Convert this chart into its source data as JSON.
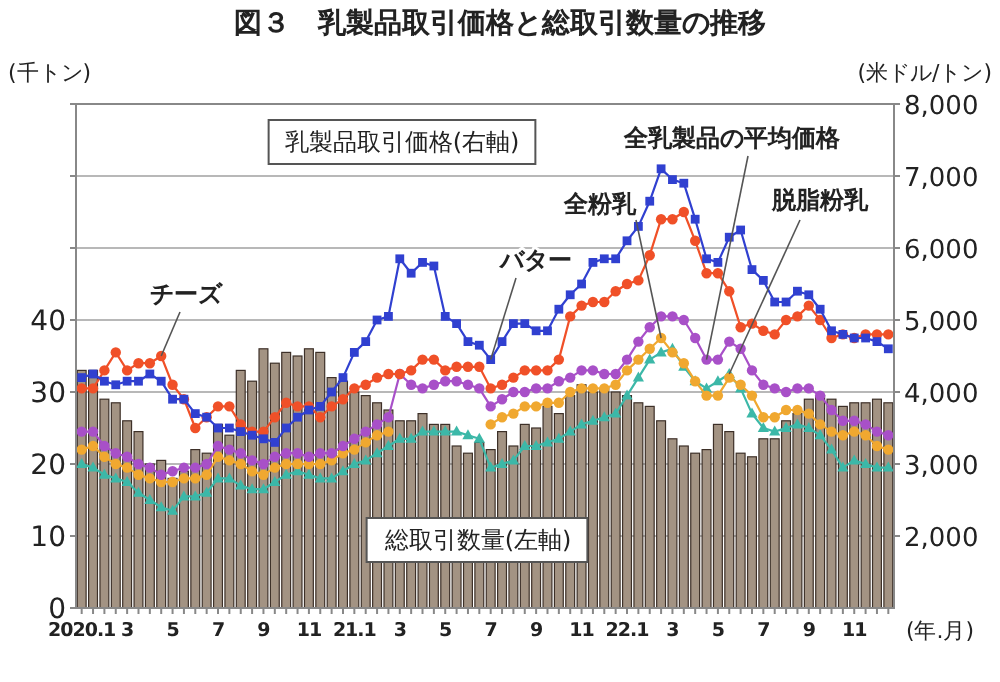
{
  "chart_data": {
    "type": "bar",
    "title": "図３　乳製品取引価格と総取引数量の推移",
    "xlabel": "(年.月)",
    "ylabel": "(千トン)",
    "y2label": "(米ドル/トン)",
    "annotations": [
      "乳製品取引価格(右軸)",
      "総取引数量(左軸)"
    ],
    "categories": [
      "2020.1",
      null,
      null,
      null,
      "3",
      null,
      null,
      null,
      "5",
      null,
      null,
      null,
      "7",
      null,
      null,
      null,
      "9",
      null,
      null,
      null,
      "11",
      null,
      null,
      null,
      "21.1",
      null,
      null,
      null,
      "3",
      null,
      null,
      null,
      "5",
      null,
      null,
      null,
      "7",
      null,
      null,
      null,
      "9",
      null,
      null,
      null,
      "11",
      null,
      null,
      null,
      "22.1",
      null,
      null,
      null,
      "3",
      null,
      null,
      null,
      "5",
      null,
      null,
      null,
      "7",
      null,
      null,
      null,
      "9",
      null,
      null,
      null,
      "11",
      null,
      null,
      null
    ],
    "ylim": [
      0,
      70
    ],
    "yticks": [
      0,
      10,
      20,
      30,
      40,
      {
        "value": 50,
        "label": null
      },
      {
        "value": 60,
        "label": null
      },
      {
        "value": 70,
        "label": null
      }
    ],
    "y2lim": [
      1000,
      8000
    ],
    "y2ticks": [
      {
        "value": 2000,
        "label": "2,000"
      },
      {
        "value": 3000,
        "label": "3,000"
      },
      {
        "value": 4000,
        "label": "4,000"
      },
      {
        "value": 5000,
        "label": "5,000"
      },
      {
        "value": 6000,
        "label": "6,000"
      },
      {
        "value": 7000,
        "label": "7,000"
      },
      {
        "value": 8000,
        "label": "8,000"
      }
    ],
    "grid": "y",
    "series": [
      {
        "color": "#a39383",
        "values": [
          33,
          33,
          29,
          28.5,
          26,
          24.5,
          20,
          20.5,
          18,
          19,
          22,
          21.5,
          25.5,
          24,
          33,
          31.5,
          36,
          34,
          35.5,
          35,
          36,
          35.5,
          32,
          31.5,
          30,
          29.5,
          28.5,
          27.5,
          26,
          26,
          27,
          25.5,
          25.5,
          22.5,
          21.5,
          23,
          22,
          24.5,
          22.5,
          25.5,
          25,
          28,
          27,
          29.5,
          31,
          30,
          30.5,
          30,
          29.5,
          28.5,
          28,
          26,
          23.5,
          22.5,
          21.5,
          22,
          25.5,
          24.5,
          21.5,
          21,
          23.5,
          23.5,
          26,
          27,
          29,
          29.5,
          29,
          28,
          28.5,
          28.5,
          29,
          28.5
        ]
      },
      {
        "type": "line",
        "axis": "y2",
        "name": "脱脂粉乳",
        "color": "#3cb8a8",
        "marker": "triangle",
        "values": [
          3000,
          2950,
          2850,
          2800,
          2750,
          2600,
          2500,
          2400,
          2350,
          2550,
          2550,
          2600,
          2800,
          2800,
          2700,
          2650,
          2650,
          2750,
          2850,
          2900,
          2850,
          2800,
          2800,
          2900,
          3000,
          3050,
          3150,
          3250,
          3350,
          3350,
          3450,
          3450,
          3450,
          3450,
          3400,
          3350,
          2950,
          3000,
          3050,
          3250,
          3250,
          3300,
          3350,
          3450,
          3550,
          3600,
          3650,
          3700,
          3950,
          4200,
          4450,
          4550,
          4600,
          4350,
          4150,
          4050,
          4150,
          4250,
          4050,
          3700,
          3500,
          3450,
          3500,
          3550,
          3500,
          3400,
          3200,
          2950,
          3050,
          3000,
          2950,
          2950
        ]
      },
      {
        "type": "line",
        "axis": "y2",
        "name": "全粉乳",
        "color": "#f0a830",
        "marker": "circle",
        "values": [
          3200,
          3250,
          3100,
          3000,
          2950,
          2850,
          2800,
          2750,
          2750,
          2800,
          2800,
          2850,
          3100,
          3050,
          3000,
          2900,
          2850,
          2950,
          3000,
          3000,
          3000,
          3000,
          3050,
          3150,
          3200,
          3300,
          3400,
          3450,
          null,
          null,
          null,
          null,
          null,
          null,
          null,
          null,
          3550,
          3650,
          3700,
          3800,
          3800,
          3850,
          3850,
          4000,
          4050,
          4050,
          4050,
          4100,
          4300,
          4450,
          4600,
          4750,
          4550,
          4400,
          4150,
          3950,
          3950,
          4200,
          4100,
          3950,
          3650,
          3650,
          3750,
          3750,
          3700,
          3550,
          3450,
          3400,
          3450,
          3400,
          3250,
          3200
        ]
      },
      {
        "type": "line",
        "axis": "y2",
        "name": "全乳製品の平均価格",
        "color": "#a850c8",
        "marker": "circle",
        "values": [
          3450,
          3450,
          3250,
          3150,
          3100,
          3000,
          2950,
          2850,
          2900,
          2950,
          2950,
          3000,
          3250,
          3200,
          3150,
          3050,
          3000,
          3100,
          3150,
          3150,
          3100,
          3150,
          3150,
          3250,
          3350,
          3450,
          3550,
          3650,
          4250,
          4100,
          4050,
          4100,
          4150,
          4150,
          4100,
          4050,
          3800,
          3900,
          4000,
          4000,
          4050,
          4050,
          4150,
          4200,
          4300,
          4300,
          4250,
          4250,
          4450,
          4700,
          4900,
          5050,
          5050,
          5000,
          4750,
          4450,
          4450,
          4700,
          4600,
          4300,
          4100,
          4050,
          4000,
          4050,
          4050,
          3950,
          3750,
          3600,
          3600,
          3550,
          3450,
          3400
        ]
      },
      {
        "type": "line",
        "axis": "y2",
        "name": "チーズ",
        "color": "#f05028",
        "marker": "circle",
        "values": [
          4050,
          4050,
          4300,
          4550,
          4300,
          4400,
          4400,
          4500,
          4100,
          3900,
          3500,
          3650,
          3800,
          3800,
          3550,
          3450,
          3450,
          3650,
          3850,
          3800,
          3800,
          3650,
          3800,
          3900,
          4050,
          4100,
          4200,
          4250,
          4250,
          4300,
          4450,
          4450,
          4300,
          4350,
          4350,
          4350,
          4050,
          4100,
          4200,
          4300,
          4300,
          4300,
          4450,
          5050,
          5200,
          5250,
          5250,
          5400,
          5500,
          5550,
          5900,
          6400,
          6400,
          6500,
          6100,
          5650,
          5650,
          5400,
          4900,
          4950,
          4850,
          4800,
          5000,
          5050,
          5200,
          5000,
          4750,
          4800,
          4750,
          4800,
          4800,
          4800
        ]
      },
      {
        "type": "line",
        "axis": "y2",
        "name": "バター",
        "color": "#3040d0",
        "marker": "square",
        "values": [
          4200,
          4250,
          4150,
          4100,
          4150,
          4150,
          4250,
          4150,
          3900,
          3900,
          3700,
          3650,
          3500,
          3500,
          3450,
          3400,
          3350,
          3300,
          3500,
          3650,
          3750,
          3800,
          4000,
          4200,
          4550,
          4700,
          5000,
          5050,
          5850,
          5650,
          5800,
          5750,
          5050,
          4950,
          4700,
          4650,
          4450,
          4700,
          4950,
          4950,
          4850,
          4850,
          5150,
          5350,
          5500,
          5800,
          5850,
          5850,
          6100,
          6300,
          6650,
          7100,
          6950,
          6900,
          6400,
          5850,
          5800,
          6150,
          6250,
          5700,
          5550,
          5250,
          5250,
          5400,
          5350,
          5150,
          4850,
          4800,
          4750,
          4750,
          4700,
          4600
        ]
      }
    ]
  }
}
